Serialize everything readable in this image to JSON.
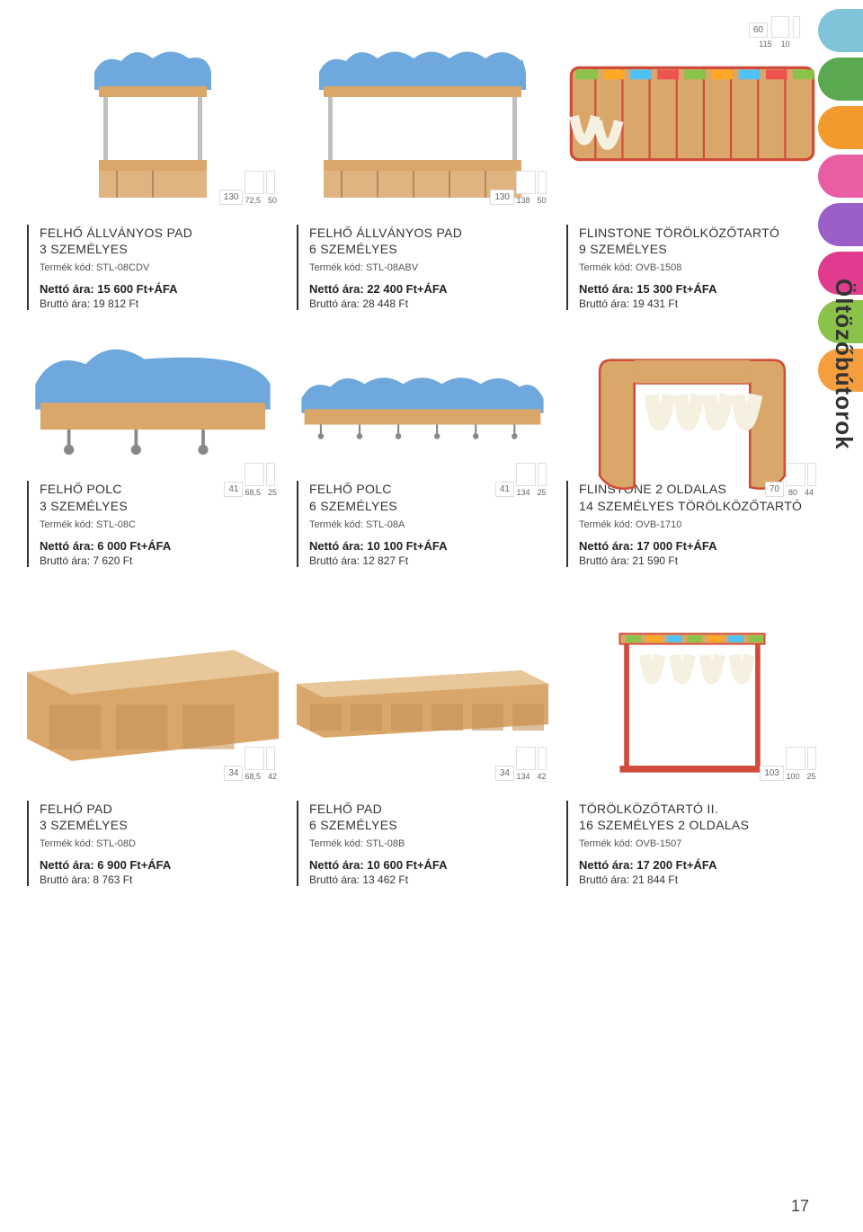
{
  "page": {
    "vertical_title": "Öltözőbútorok",
    "page_number": "17"
  },
  "side_tabs": {
    "colors": [
      "#7fc4d8",
      "#5aa84f",
      "#f29b2c",
      "#e95ea3",
      "#9b5fc7",
      "#e13b8f",
      "#8bc34a",
      "#f59e3d"
    ]
  },
  "top_dims": {
    "r1": {
      "h": "60",
      "w1": "115",
      "w2": "10"
    }
  },
  "rows": [
    {
      "img_row_height": 200,
      "items": [
        {
          "dim": {
            "h": "130",
            "w1": "72,5",
            "w2": "50"
          },
          "title_l1": "FELHŐ ÁLLVÁNYOS PAD",
          "title_l2": "3 SZEMÉLYES",
          "code": "Termék kód: STL-08CDV",
          "net": "Nettó ára: 15 600 Ft+ÁFA",
          "gross": "Bruttó ára: 19 812 Ft",
          "svg_kind": "stand_small",
          "colors": {
            "cloud": "#6fa8dc",
            "wood": "#d9a76a",
            "frame": "#bfbfbf"
          }
        },
        {
          "dim": {
            "h": "130",
            "w1": "138",
            "w2": "50"
          },
          "title_l1": "FELHŐ ÁLLVÁNYOS PAD",
          "title_l2": "6 SZEMÉLYES",
          "code": "Termék kód: STL-08ABV",
          "net": "Nettó ára: 22 400 Ft+ÁFA",
          "gross": "Bruttó ára: 28 448 Ft",
          "svg_kind": "stand_large",
          "colors": {
            "cloud": "#6fa8dc",
            "wood": "#d9a76a",
            "frame": "#bfbfbf"
          }
        },
        {
          "dim": null,
          "title_l1": "FLINSTONE TÖRÖLKÖZŐTARTÓ",
          "title_l2": "9 SZEMÉLYES",
          "code": "Termék kód: OVB-1508",
          "net": "Nettó ára: 15 300 Ft+ÁFA",
          "gross": "Bruttó ára: 19 431 Ft",
          "svg_kind": "towel_rack",
          "colors": {
            "wood": "#d9a76a",
            "trim": "#d14b3a"
          }
        }
      ]
    },
    {
      "img_row_height": 140,
      "items": [
        {
          "dim": {
            "h": "41",
            "w1": "68,5",
            "w2": "25"
          },
          "title_l1": "FELHŐ POLC",
          "title_l2": "3 SZEMÉLYES",
          "code": "Termék kód: STL-08C",
          "net": "Nettó ára: 6 000 Ft+ÁFA",
          "gross": "Bruttó ára: 7 620 Ft",
          "svg_kind": "shelf_small",
          "colors": {
            "cloud": "#6fa8dc",
            "wood": "#d9a76a"
          }
        },
        {
          "dim": {
            "h": "41",
            "w1": "134",
            "w2": "25"
          },
          "title_l1": "FELHŐ POLC",
          "title_l2": "6 SZEMÉLYES",
          "code": "Termék kód: STL-08A",
          "net": "Nettó ára: 10 100 Ft+ÁFA",
          "gross": "Bruttó ára: 12 827 Ft",
          "svg_kind": "shelf_large",
          "colors": {
            "cloud": "#6fa8dc",
            "wood": "#d9a76a"
          }
        },
        {
          "dim": {
            "h": "70",
            "w1": "80",
            "w2": "44"
          },
          "title_l1": "FLINSTONE 2 OLDALAS",
          "title_l2": "14 SZEMÉLYES TÖRÖLKÖZŐTARTÓ",
          "code": "Termék kód: OVB-1710",
          "net": "Nettó ára: 17 000 Ft+ÁFA",
          "gross": "Bruttó ára: 21 590 Ft",
          "svg_kind": "towel_stand",
          "colors": {
            "wood": "#d9a76a",
            "trim": "#d14b3a"
          }
        }
      ]
    },
    {
      "img_row_height": 210,
      "items": [
        {
          "dim": {
            "h": "34",
            "w1": "68,5",
            "w2": "42"
          },
          "title_l1": "FELHŐ PAD",
          "title_l2": "3 SZEMÉLYES",
          "code": "Termék kód: STL-08D",
          "net": "Nettó ára: 6 900 Ft+ÁFA",
          "gross": "Bruttó ára: 8 763 Ft",
          "svg_kind": "bench_small",
          "colors": {
            "wood": "#d9a76a"
          }
        },
        {
          "dim": {
            "h": "34",
            "w1": "134",
            "w2": "42"
          },
          "title_l1": "FELHŐ PAD",
          "title_l2": "6 SZEMÉLYES",
          "code": "Termék kód: STL-08B",
          "net": "Nettó ára: 10 600 Ft+ÁFA",
          "gross": "Bruttó ára: 13 462 Ft",
          "svg_kind": "bench_large",
          "colors": {
            "wood": "#d9a76a"
          }
        },
        {
          "dim": {
            "h": "103",
            "w1": "100",
            "w2": "25"
          },
          "title_l1": "TÖRÖLKÖZŐTARTÓ II.",
          "title_l2": "16 SZEMÉLYES 2 OLDALAS",
          "code": "Termék kód: OVB-1507",
          "net": "Nettó ára: 17 200 Ft+ÁFA",
          "gross": "Bruttó ára: 21 844 Ft",
          "svg_kind": "towel_frame",
          "colors": {
            "frame": "#d14b3a",
            "wood": "#d9a76a"
          }
        }
      ]
    }
  ]
}
